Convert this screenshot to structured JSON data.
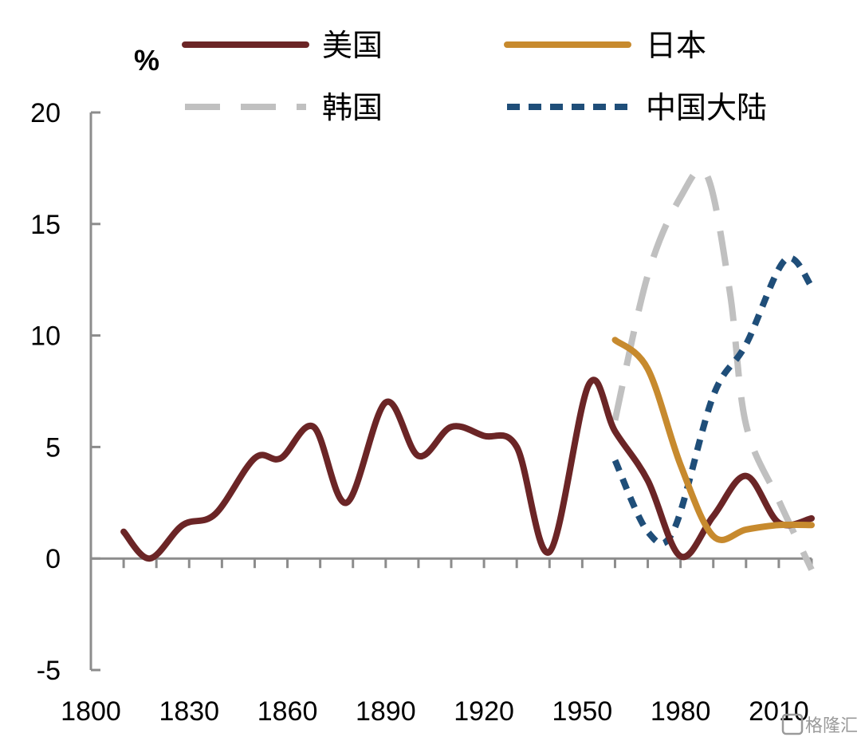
{
  "chart_data": {
    "type": "line",
    "ylabel": "%",
    "xlim": [
      1800,
      2020
    ],
    "ylim": [
      -5,
      20
    ],
    "x_ticks": [
      1800,
      1830,
      1860,
      1890,
      1920,
      1950,
      1980,
      2010
    ],
    "y_ticks": [
      -5,
      0,
      5,
      10,
      15,
      20
    ],
    "legend_placement": "top",
    "grid": false,
    "series": [
      {
        "name": "美国",
        "color": "#6b2526",
        "style": "solid",
        "points": [
          [
            1810,
            1.2
          ],
          [
            1818,
            0.0
          ],
          [
            1828,
            1.5
          ],
          [
            1838,
            2.0
          ],
          [
            1850,
            4.5
          ],
          [
            1858,
            4.5
          ],
          [
            1868,
            5.9
          ],
          [
            1878,
            2.5
          ],
          [
            1890,
            7.0
          ],
          [
            1900,
            4.6
          ],
          [
            1910,
            5.9
          ],
          [
            1920,
            5.5
          ],
          [
            1930,
            5.0
          ],
          [
            1940,
            0.3
          ],
          [
            1952,
            7.8
          ],
          [
            1960,
            5.7
          ],
          [
            1970,
            3.5
          ],
          [
            1980,
            0.1
          ],
          [
            1990,
            1.9
          ],
          [
            2000,
            3.7
          ],
          [
            2010,
            1.6
          ],
          [
            2020,
            1.8
          ]
        ]
      },
      {
        "name": "日本",
        "color": "#c78a2e",
        "style": "solid",
        "points": [
          [
            1960,
            9.8
          ],
          [
            1970,
            8.5
          ],
          [
            1980,
            4.2
          ],
          [
            1990,
            1.0
          ],
          [
            2000,
            1.3
          ],
          [
            2010,
            1.5
          ],
          [
            2020,
            1.5
          ]
        ]
      },
      {
        "name": "韩国",
        "color": "#c0c0c0",
        "style": "long-dash",
        "points": [
          [
            1960,
            6.2
          ],
          [
            1970,
            12.7
          ],
          [
            1980,
            16.2
          ],
          [
            1988,
            17.2
          ],
          [
            1995,
            12.0
          ],
          [
            2000,
            6.0
          ],
          [
            2010,
            2.6
          ],
          [
            2020,
            -0.5
          ]
        ]
      },
      {
        "name": "中国大陆",
        "color": "#1f4e79",
        "style": "short-dash",
        "points": [
          [
            1960,
            4.4
          ],
          [
            1970,
            1.2
          ],
          [
            1978,
            1.3
          ],
          [
            1990,
            7.3
          ],
          [
            2000,
            9.6
          ],
          [
            2012,
            13.4
          ],
          [
            2020,
            12.2
          ]
        ]
      }
    ]
  },
  "watermark": "格隆汇"
}
